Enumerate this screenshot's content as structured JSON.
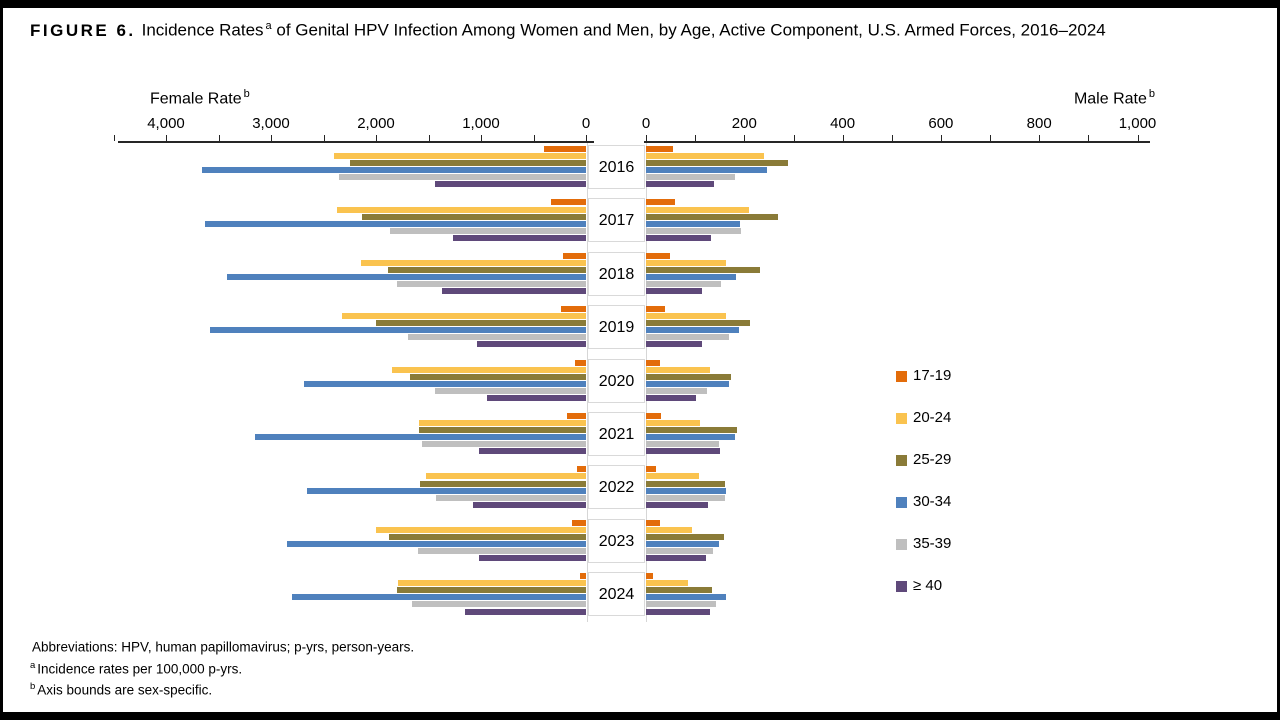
{
  "title": {
    "label": "FIGURE 6.",
    "text1": "Incidence Rates",
    "sup1": "a",
    "text2": "of Genital HPV Infection Among Women and Men, by Age, Active Component, U.S. Armed Forces, 2016–2024"
  },
  "chart_data": {
    "type": "bar",
    "subtype": "bidirectional-population-pyramid",
    "title": "Incidence Rates of Genital HPV Infection Among Women and Men, by Age, Active Component, U.S. Armed Forces, 2016–2024",
    "units": "incidence rate per 100,000 person-years",
    "categories": [
      "2016",
      "2017",
      "2018",
      "2019",
      "2020",
      "2021",
      "2022",
      "2023",
      "2024"
    ],
    "left_axis": {
      "title": "Female Rate",
      "title_sup": "b",
      "range": [
        0,
        4500
      ],
      "minor_interval": 500,
      "tick_values": [
        4000,
        3000,
        2000,
        1000,
        0
      ],
      "tick_labels": [
        "4,000",
        "3,000",
        "2,000",
        "1,000",
        "0"
      ]
    },
    "right_axis": {
      "title": "Male Rate",
      "title_sup": "b",
      "range": [
        0,
        1000
      ],
      "minor_interval": 100,
      "tick_values": [
        0,
        200,
        400,
        600,
        800,
        1000
      ],
      "tick_labels": [
        "0",
        "200",
        "400",
        "600",
        "800",
        "1,000"
      ]
    },
    "series": [
      {
        "name": "17-19",
        "color": "#E36C0A",
        "female": [
          400,
          330,
          215,
          240,
          110,
          180,
          85,
          135,
          60
        ],
        "male": [
          55,
          58,
          48,
          38,
          28,
          31,
          21,
          29,
          15
        ]
      },
      {
        "name": "20-24",
        "color": "#FAC34F",
        "female": [
          2400,
          2370,
          2140,
          2320,
          1850,
          1595,
          1520,
          2000,
          1790
        ],
        "male": [
          240,
          210,
          163,
          163,
          131,
          109,
          108,
          93,
          86
        ]
      },
      {
        "name": "25-29",
        "color": "#8A7B38",
        "female": [
          2250,
          2130,
          1890,
          2000,
          1680,
          1590,
          1580,
          1880,
          1800
        ],
        "male": [
          288,
          268,
          231,
          211,
          173,
          186,
          160,
          158,
          135
        ]
      },
      {
        "name": "30-34",
        "color": "#4F81BD",
        "female": [
          3660,
          3630,
          3420,
          3580,
          2690,
          3150,
          2660,
          2850,
          2800
        ],
        "male": [
          246,
          191,
          182,
          190,
          168,
          180,
          163,
          148,
          162
        ]
      },
      {
        "name": "35-39",
        "color": "#BFBFBF",
        "female": [
          2350,
          1870,
          1800,
          1700,
          1440,
          1560,
          1430,
          1600,
          1660
        ],
        "male": [
          181,
          194,
          152,
          168,
          124,
          149,
          161,
          137,
          142
        ]
      },
      {
        "name": "≥ 40",
        "color": "#5F497A",
        "female": [
          1440,
          1270,
          1370,
          1040,
          940,
          1020,
          1080,
          1020,
          1150
        ],
        "male": [
          139,
          132,
          114,
          114,
          101,
          150,
          126,
          122,
          130
        ]
      }
    ],
    "legend_position": "right"
  },
  "footnotes": [
    {
      "sup": "",
      "text": "Abbreviations: HPV, human papillomavirus; p-yrs, person-years."
    },
    {
      "sup": "a",
      "text": "Incidence rates per 100,000 p-yrs."
    },
    {
      "sup": "b",
      "text": "Axis bounds are sex-specific."
    }
  ]
}
